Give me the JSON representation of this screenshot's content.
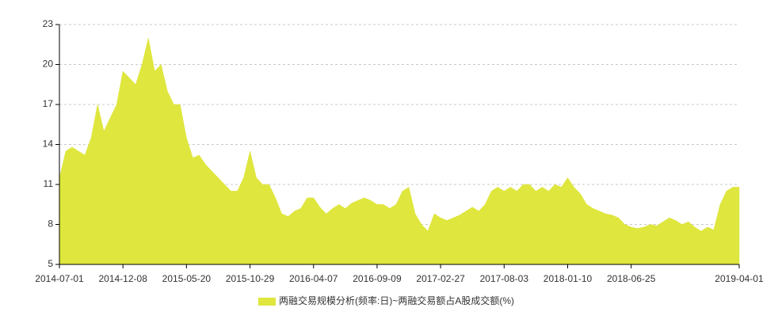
{
  "chart_data": {
    "type": "area",
    "categories": [
      "2014-07-01",
      null,
      null,
      null,
      null,
      null,
      null,
      null,
      null,
      null,
      "2014-12-08",
      null,
      null,
      null,
      null,
      null,
      null,
      null,
      null,
      null,
      "2015-05-20",
      null,
      null,
      null,
      null,
      null,
      null,
      null,
      null,
      null,
      "2015-10-29",
      null,
      null,
      null,
      null,
      null,
      null,
      null,
      null,
      null,
      "2016-04-07",
      null,
      null,
      null,
      null,
      null,
      null,
      null,
      null,
      null,
      "2016-09-09",
      null,
      null,
      null,
      null,
      null,
      null,
      null,
      null,
      null,
      "2017-02-27",
      null,
      null,
      null,
      null,
      null,
      null,
      null,
      null,
      null,
      "2017-08-03",
      null,
      null,
      null,
      null,
      null,
      null,
      null,
      null,
      null,
      "2018-01-10",
      null,
      null,
      null,
      null,
      null,
      null,
      null,
      null,
      null,
      "2018-06-25",
      null,
      null,
      null,
      null,
      null,
      null,
      null,
      null,
      null,
      null,
      null,
      null,
      null,
      null,
      null,
      null,
      "2019-04-01"
    ],
    "series": [
      {
        "name": "两融交易规模分析(频率:日)~两融交易额占A股成交额(%)",
        "color": "#dfe63e",
        "values": [
          11.5,
          13.5,
          13.8,
          13.5,
          13.2,
          14.5,
          17,
          15,
          16,
          17,
          19.5,
          19,
          18.5,
          20,
          22,
          19.5,
          20,
          18,
          17,
          17,
          14.5,
          13,
          13.2,
          12.5,
          12,
          11.5,
          11,
          10.5,
          10.5,
          11.5,
          13.5,
          11.5,
          11,
          11,
          10,
          8.8,
          8.6,
          9,
          9.2,
          10,
          10,
          9.3,
          8.8,
          9.2,
          9.5,
          9.2,
          9.6,
          9.8,
          10,
          9.8,
          9.5,
          9.5,
          9.2,
          9.5,
          10.5,
          10.8,
          8.8,
          8,
          7.5,
          8.8,
          8.5,
          8.3,
          8.5,
          8.7,
          9,
          9.3,
          9,
          9.5,
          10.5,
          10.8,
          10.5,
          10.8,
          10.5,
          11,
          11,
          10.5,
          10.8,
          10.5,
          11,
          10.8,
          11.5,
          10.8,
          10.3,
          9.5,
          9.2,
          9,
          8.8,
          8.7,
          8.5,
          8,
          7.8,
          7.7,
          7.8,
          8,
          7.9,
          8.2,
          8.5,
          8.3,
          8,
          8.2,
          7.8,
          7.5,
          7.8,
          7.6,
          9.5,
          10.5,
          10.8,
          10.8
        ]
      }
    ],
    "ylim": [
      5,
      23
    ],
    "yticks": [
      5,
      8,
      11,
      14,
      17,
      20,
      23
    ],
    "grid": true
  }
}
